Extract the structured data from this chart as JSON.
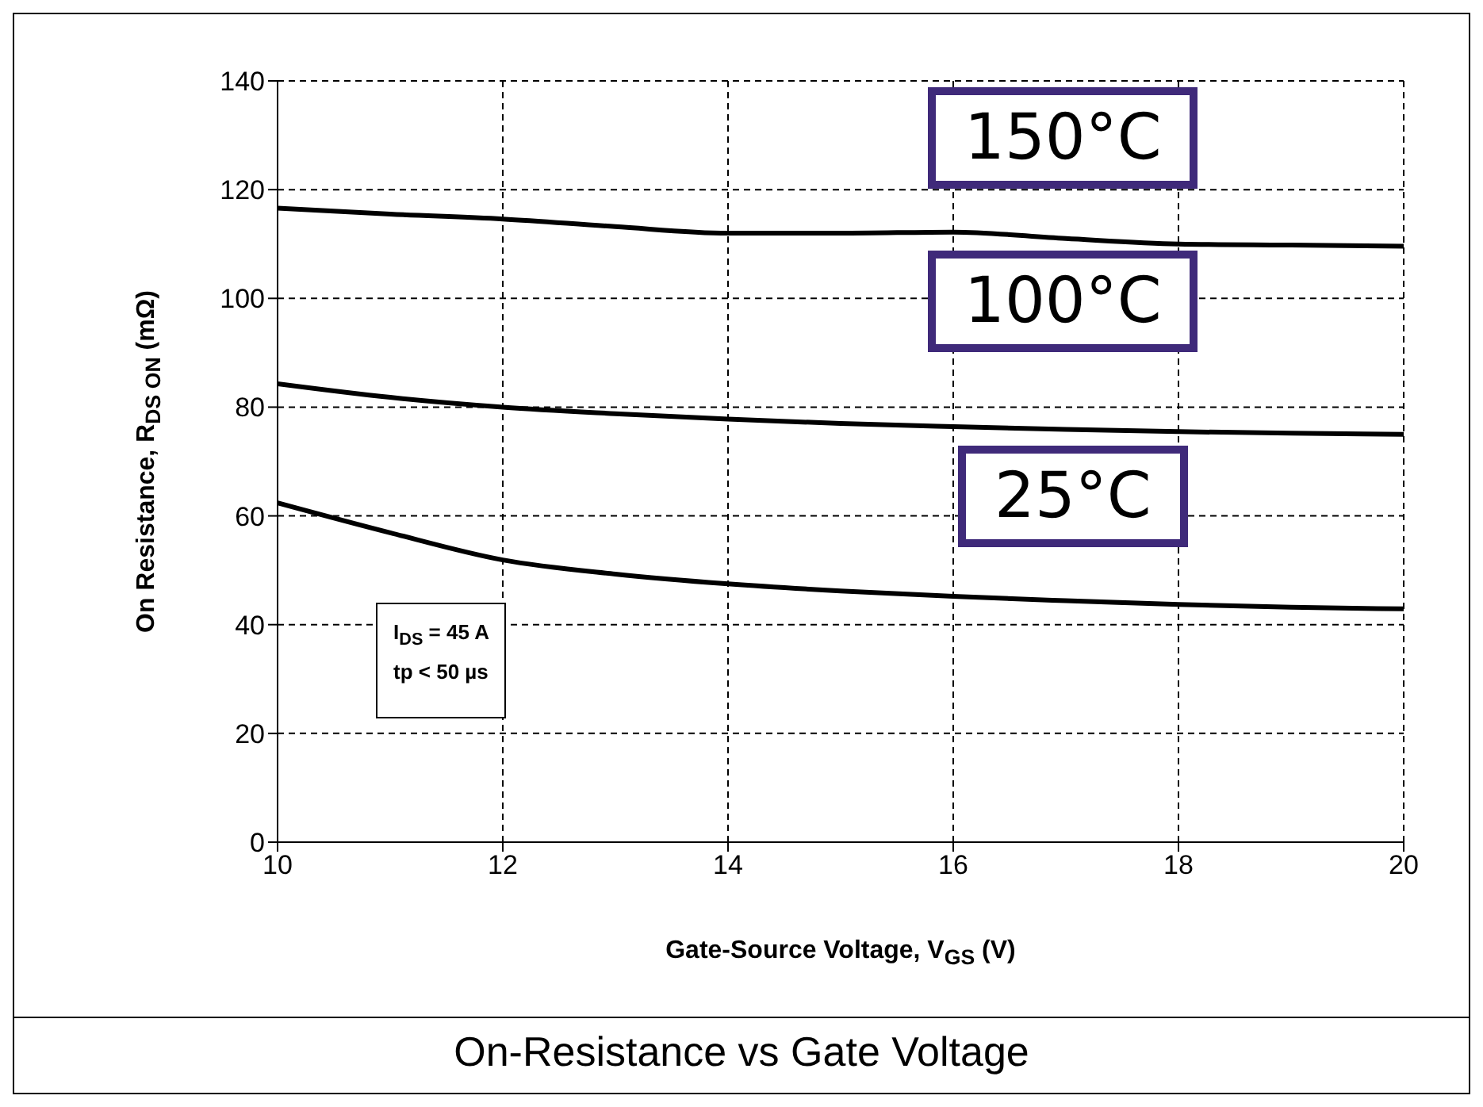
{
  "chart_data": {
    "type": "line",
    "title": "On-Resistance vs Gate Voltage",
    "xlabel": "Gate-Source Voltage, V$_{GS}$ (V)",
    "ylabel": "On Resistance, R$_{DS ON}$ (mΩ)",
    "x": [
      10,
      11,
      12,
      13,
      14,
      15,
      16,
      17,
      18,
      19,
      20
    ],
    "series": [
      {
        "color": "#000000",
        "values": [
          116.6,
          115.5,
          114.6,
          113.2,
          112,
          112,
          112.2,
          111,
          110,
          109.8,
          109.6
        ]
      },
      {
        "color": "#000000",
        "values": [
          84.3,
          81.8,
          80,
          78.8,
          77.8,
          77,
          76.4,
          75.9,
          75.5,
          75.2,
          75
        ]
      },
      {
        "color": "#000000",
        "values": [
          62.4,
          56.9,
          51.9,
          49.3,
          47.5,
          46.2,
          45.2,
          44.4,
          43.7,
          43.2,
          42.9
        ]
      }
    ],
    "annotations": [
      "150°C",
      "100°C",
      "25°C",
      "I$_{DS}$ = 45 A",
      "tp < 50 µs"
    ],
    "xlim": [
      10,
      20
    ],
    "xticks": [
      10,
      12,
      14,
      16,
      18,
      20
    ],
    "ylim": [
      0,
      140
    ],
    "yticks": [
      0,
      20,
      40,
      60,
      80,
      100,
      120,
      140
    ],
    "grid": true,
    "legend": false,
    "marker": "none",
    "line_style": "solid"
  }
}
